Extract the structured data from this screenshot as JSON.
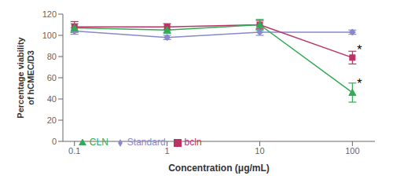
{
  "chart_data": {
    "type": "line",
    "x": [
      0.1,
      1,
      10,
      100
    ],
    "series": [
      {
        "name": "Standard",
        "color": "#8888cc",
        "marker": "diamond",
        "values": [
          104,
          98,
          103,
          103
        ],
        "error": [
          3,
          2,
          3,
          2
        ]
      },
      {
        "name": "bcln",
        "color": "#bb3366",
        "marker": "square",
        "values": [
          108,
          108,
          110,
          79
        ],
        "error": [
          5,
          3,
          4,
          6
        ]
      },
      {
        "name": "CLN",
        "color": "#33aa55",
        "marker": "triangle",
        "values": [
          107,
          105,
          110,
          46
        ],
        "error": [
          4,
          3,
          5,
          9
        ]
      }
    ],
    "xlabel": "Concentration (μg/mL)",
    "ylabel": "Percentage viability\nof hCMEC/D3",
    "log": "x",
    "xlim": [
      0.075,
      175
    ],
    "xticks": [
      0.1,
      1,
      10,
      100
    ],
    "ylim": [
      0,
      120
    ],
    "yticks": [
      0,
      20,
      40,
      60,
      80,
      100,
      120
    ],
    "grid": false,
    "legend": "lower left",
    "annotations": [
      {
        "text": "*",
        "x": 112,
        "y": 87
      },
      {
        "text": "*",
        "x": 112,
        "y": 55
      }
    ]
  }
}
